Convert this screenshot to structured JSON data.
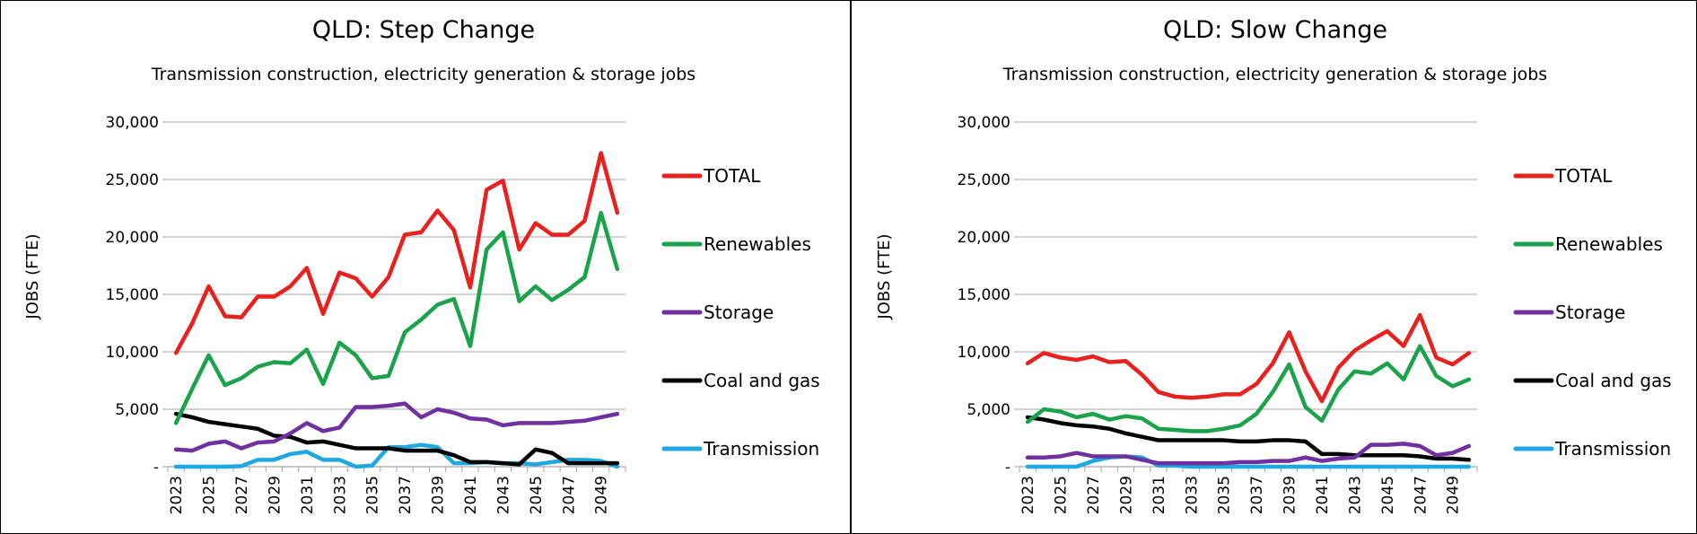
{
  "chart_data": [
    {
      "type": "line",
      "title": "QLD: Step Change",
      "subtitle": "Transmission construction, electricity generation & storage jobs",
      "ylabel": "JOBS (FTE)",
      "xlabel": "",
      "ylim": [
        0,
        30000
      ],
      "yticks": [
        0,
        5000,
        10000,
        15000,
        20000,
        25000,
        30000
      ],
      "ytick_labels": [
        "-",
        "5,000",
        "10,000",
        "15,000",
        "20,000",
        "25,000",
        "30,000"
      ],
      "x": [
        2023,
        2024,
        2025,
        2026,
        2027,
        2028,
        2029,
        2030,
        2031,
        2032,
        2033,
        2034,
        2035,
        2036,
        2037,
        2038,
        2039,
        2040,
        2041,
        2042,
        2043,
        2044,
        2045,
        2046,
        2047,
        2048,
        2049,
        2050
      ],
      "xtick_labels": [
        "2023",
        "2025",
        "2027",
        "2029",
        "2031",
        "2033",
        "2035",
        "2037",
        "2039",
        "2041",
        "2043",
        "2045",
        "2047",
        "2049"
      ],
      "grid": true,
      "legend": "right",
      "series": [
        {
          "name": "TOTAL",
          "color": "#e8201e",
          "values": [
            9900,
            12500,
            15700,
            13100,
            13000,
            14800,
            14800,
            15700,
            17300,
            13300,
            16900,
            16400,
            14800,
            16500,
            20200,
            20400,
            22300,
            20600,
            15600,
            24100,
            24900,
            18900,
            21200,
            20200,
            20200,
            21400,
            27300,
            22100
          ]
        },
        {
          "name": "Renewables",
          "color": "#1aa34a",
          "values": [
            3800,
            6800,
            9700,
            7100,
            7700,
            8700,
            9100,
            9000,
            10200,
            7200,
            10800,
            9700,
            7700,
            7900,
            11700,
            12800,
            14100,
            14600,
            10500,
            18900,
            20400,
            14400,
            15700,
            14500,
            15400,
            16500,
            22100,
            17200
          ]
        },
        {
          "name": "Storage",
          "color": "#7030a0",
          "values": [
            1500,
            1400,
            2000,
            2200,
            1600,
            2100,
            2200,
            2900,
            3800,
            3100,
            3400,
            5200,
            5200,
            5300,
            5500,
            4300,
            5000,
            4700,
            4200,
            4100,
            3600,
            3800,
            3800,
            3800,
            3900,
            4000,
            4300,
            4600
          ]
        },
        {
          "name": "Coal and gas",
          "color": "#000000",
          "values": [
            4600,
            4300,
            3900,
            3700,
            3500,
            3300,
            2700,
            2600,
            2100,
            2200,
            1900,
            1600,
            1600,
            1600,
            1400,
            1400,
            1400,
            1000,
            400,
            400,
            300,
            200,
            1500,
            1200,
            300,
            300,
            300,
            300
          ]
        },
        {
          "name": "Transmission",
          "color": "#1ea7e1",
          "values": [
            0,
            0,
            0,
            0,
            50,
            600,
            600,
            1100,
            1300,
            600,
            600,
            0,
            100,
            1700,
            1700,
            1900,
            1700,
            300,
            300,
            400,
            300,
            300,
            200,
            400,
            600,
            600,
            500,
            0
          ]
        }
      ]
    },
    {
      "type": "line",
      "title": "QLD: Slow Change",
      "subtitle": "Transmission construction, electricity generation & storage jobs",
      "ylabel": "JOBS (FTE)",
      "xlabel": "",
      "ylim": [
        0,
        30000
      ],
      "yticks": [
        0,
        5000,
        10000,
        15000,
        20000,
        25000,
        30000
      ],
      "ytick_labels": [
        "-",
        "5,000",
        "10,000",
        "15,000",
        "20,000",
        "25,000",
        "30,000"
      ],
      "x": [
        2023,
        2024,
        2025,
        2026,
        2027,
        2028,
        2029,
        2030,
        2031,
        2032,
        2033,
        2034,
        2035,
        2036,
        2037,
        2038,
        2039,
        2040,
        2041,
        2042,
        2043,
        2044,
        2045,
        2046,
        2047,
        2048,
        2049,
        2050
      ],
      "xtick_labels": [
        "2023",
        "2025",
        "2027",
        "2029",
        "2031",
        "2033",
        "2035",
        "2037",
        "2039",
        "2041",
        "2043",
        "2045",
        "2047",
        "2049"
      ],
      "grid": true,
      "legend": "right",
      "series": [
        {
          "name": "TOTAL",
          "color": "#e8201e",
          "values": [
            9000,
            9900,
            9500,
            9300,
            9600,
            9100,
            9200,
            8000,
            6500,
            6100,
            6000,
            6100,
            6300,
            6300,
            7200,
            9000,
            11700,
            8300,
            5700,
            8600,
            10100,
            11000,
            11800,
            10500,
            13200,
            9500,
            8900,
            9900
          ]
        },
        {
          "name": "Renewables",
          "color": "#1aa34a",
          "values": [
            3900,
            5000,
            4800,
            4300,
            4600,
            4100,
            4400,
            4200,
            3300,
            3200,
            3100,
            3100,
            3300,
            3600,
            4600,
            6500,
            8900,
            5200,
            4000,
            6700,
            8300,
            8100,
            9000,
            7600,
            10500,
            7900,
            7000,
            7600
          ]
        },
        {
          "name": "Storage",
          "color": "#7030a0",
          "values": [
            800,
            800,
            900,
            1200,
            900,
            900,
            900,
            600,
            300,
            300,
            300,
            300,
            300,
            400,
            400,
            500,
            500,
            800,
            500,
            700,
            800,
            1900,
            1900,
            2000,
            1800,
            1000,
            1200,
            1800
          ]
        },
        {
          "name": "Coal and gas",
          "color": "#000000",
          "values": [
            4300,
            4100,
            3800,
            3600,
            3500,
            3300,
            2900,
            2600,
            2300,
            2300,
            2300,
            2300,
            2300,
            2200,
            2200,
            2300,
            2300,
            2200,
            1100,
            1100,
            1000,
            1000,
            1000,
            1000,
            900,
            700,
            700,
            600
          ]
        },
        {
          "name": "Transmission",
          "color": "#1ea7e1",
          "values": [
            0,
            0,
            0,
            0,
            500,
            800,
            900,
            800,
            100,
            100,
            0,
            0,
            0,
            0,
            0,
            0,
            0,
            0,
            0,
            0,
            0,
            0,
            0,
            0,
            0,
            0,
            0,
            0
          ]
        }
      ]
    }
  ]
}
